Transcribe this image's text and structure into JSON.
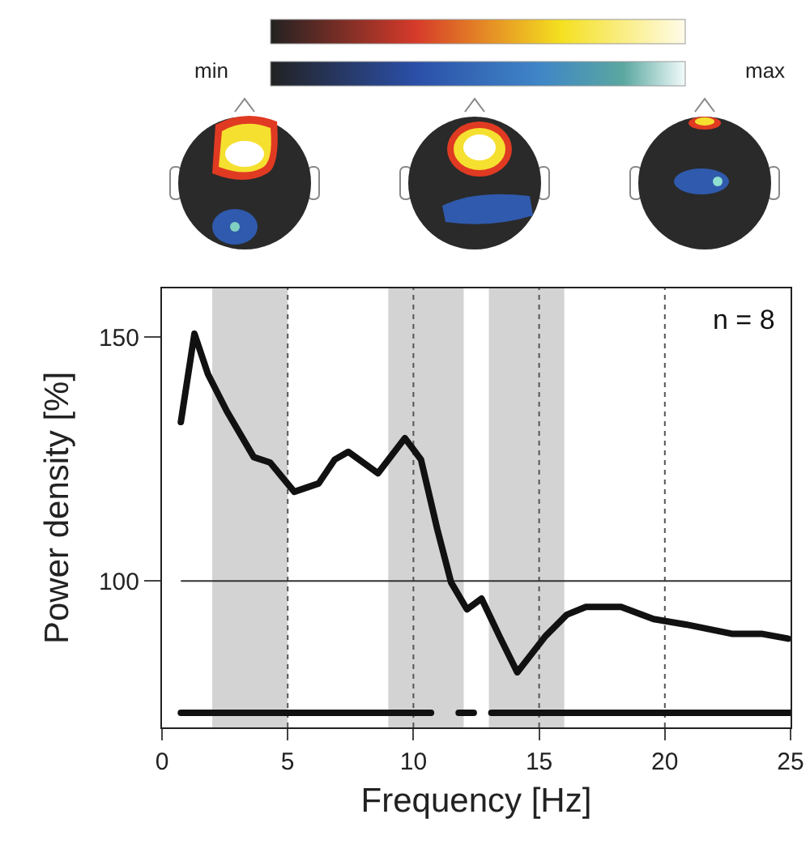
{
  "chart_data": {
    "type": "line",
    "xlabel": "Frequency [Hz]",
    "ylabel": "Power density [%]",
    "annotations": [
      "min",
      "max",
      "n = 8"
    ],
    "xlim": [
      0,
      25
    ],
    "xticks": [
      0,
      5,
      10,
      15,
      20,
      25
    ],
    "ylim": [
      70,
      160
    ],
    "yticks": [
      100,
      150
    ],
    "marker": "none",
    "line_style": "solid",
    "series": [
      {
        "color": "#111111",
        "x": [
          0.75,
          1.29,
          1.83,
          2.58,
          3.65,
          4.3,
          5.26,
          6.23,
          6.87,
          7.41,
          8.59,
          9.66,
          10.3,
          10.95,
          11.5,
          12.13,
          12.71,
          13.42,
          14.13,
          15.25,
          16.1,
          16.86,
          18.26,
          19.55,
          20.83,
          22.66,
          23.84,
          24.9
        ],
        "values": [
          132.6,
          150.7,
          142.4,
          134.8,
          125.4,
          124.3,
          118.3,
          120,
          124.9,
          126.5,
          122.1,
          129.3,
          124.9,
          110.6,
          99.7,
          94.2,
          96.4,
          88.7,
          81.3,
          88.7,
          93.1,
          94.7,
          94.7,
          92.2,
          91.1,
          89.2,
          89.2,
          88.2
        ]
      },
      {
        "color": "#111111",
        "x": [
          0.75,
          10.7
        ],
        "values": [
          73,
          73
        ]
      },
      {
        "color": "#111111",
        "x": [
          11.8,
          12.4
        ],
        "values": [
          73,
          73
        ]
      },
      {
        "color": "#111111",
        "x": [
          13.1,
          25
        ],
        "values": [
          73,
          73
        ]
      }
    ],
    "ref_lines": [
      {
        "axis": "y",
        "value": 100,
        "color": "#333333",
        "line_style": "solid"
      },
      {
        "axis": "x",
        "value": 5,
        "color": "#555555",
        "line_style": "dotted"
      },
      {
        "axis": "x",
        "value": 10,
        "color": "#555555",
        "line_style": "dotted"
      },
      {
        "axis": "x",
        "value": 15,
        "color": "#555555",
        "line_style": "dotted"
      },
      {
        "axis": "x",
        "value": 20,
        "color": "#555555",
        "line_style": "dotted"
      }
    ],
    "bands": [
      {
        "axis": "x",
        "from": 2,
        "to": 5,
        "color": "#d3d3d3"
      },
      {
        "axis": "x",
        "from": 9,
        "to": 12,
        "color": "#d3d3d3"
      },
      {
        "axis": "x",
        "from": 13,
        "to": 16,
        "color": "#d3d3d3"
      }
    ]
  }
}
